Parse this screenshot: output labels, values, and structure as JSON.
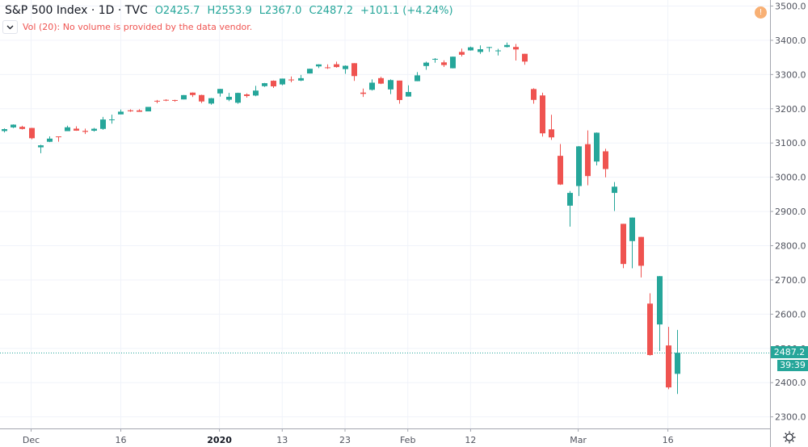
{
  "legend": {
    "title": "S&P 500 Index · 1D · TVC",
    "open": "O2425.7",
    "high": "H2553.9",
    "low": "L2367.0",
    "close": "C2487.2",
    "change": "+101.1 (+4.24%)"
  },
  "volume_indicator": {
    "collapse_icon": "chevron-down-icon",
    "text": "Vol (20): No volume is provided by the data vendor."
  },
  "alert_icon": {
    "name": "exclamation-circle-icon",
    "glyph": "!"
  },
  "price_axis": {
    "current_price_label": "2487.2",
    "countdown_label": "39:39",
    "settings_icon": "gear-icon"
  },
  "colors": {
    "up": "#26a69a",
    "down": "#ef5350",
    "grid": "#f0f3fa",
    "axis_line": "#a3a6af",
    "axis_text": "#50535e",
    "alert": "#f7a35c"
  },
  "chart_data": {
    "type": "candlestick",
    "title": "S&P 500 Index · 1D · TVC",
    "xlabel": "",
    "ylabel": "",
    "ylim": [
      2280,
      3520
    ],
    "grid": true,
    "y_ticks": [
      3500,
      3400,
      3300,
      3200,
      3100,
      3000,
      2900,
      2800,
      2700,
      2600,
      2500,
      2400,
      2300
    ],
    "y_tick_labels": [
      "3500.0",
      "3400.0",
      "3300.0",
      "3200.0",
      "3100.0",
      "3000.0",
      "2900.0",
      "2800.0",
      "2700.0",
      "2600.0",
      "2500.0",
      "2400.0",
      "2300.0"
    ],
    "x_ticks": [
      {
        "index": 3,
        "label": "Dec",
        "bold": false
      },
      {
        "index": 13,
        "label": "16",
        "bold": false
      },
      {
        "index": 24,
        "label": "2020",
        "bold": true
      },
      {
        "index": 31,
        "label": "13",
        "bold": false
      },
      {
        "index": 38,
        "label": "23",
        "bold": false
      },
      {
        "index": 45,
        "label": "Feb",
        "bold": false
      },
      {
        "index": 52,
        "label": "12",
        "bold": false
      },
      {
        "index": 64,
        "label": "Mar",
        "bold": false
      },
      {
        "index": 74,
        "label": "16",
        "bold": false
      }
    ],
    "current_price": 2487.2,
    "candles": [
      {
        "d": "2019-11-26",
        "o": 3134.9,
        "h": 3142.7,
        "l": 3131.0,
        "c": 3140.5
      },
      {
        "d": "2019-11-27",
        "o": 3145.5,
        "h": 3154.3,
        "l": 3143.4,
        "c": 3153.6
      },
      {
        "d": "2019-11-29",
        "o": 3147.2,
        "h": 3150.3,
        "l": 3139.3,
        "c": 3141.0
      },
      {
        "d": "2019-12-02",
        "o": 3143.9,
        "h": 3144.3,
        "l": 3110.8,
        "c": 3113.9
      },
      {
        "d": "2019-12-03",
        "o": 3087.4,
        "h": 3095.0,
        "l": 3070.3,
        "c": 3093.2
      },
      {
        "d": "2019-12-04",
        "o": 3103.5,
        "h": 3119.4,
        "l": 3102.5,
        "c": 3112.8
      },
      {
        "d": "2019-12-05",
        "o": 3119.2,
        "h": 3119.5,
        "l": 3103.8,
        "c": 3117.4
      },
      {
        "d": "2019-12-06",
        "o": 3134.6,
        "h": 3150.6,
        "l": 3134.6,
        "c": 3145.9
      },
      {
        "d": "2019-12-09",
        "o": 3141.9,
        "h": 3148.9,
        "l": 3135.5,
        "c": 3136.0
      },
      {
        "d": "2019-12-10",
        "o": 3135.4,
        "h": 3142.1,
        "l": 3126.1,
        "c": 3132.5
      },
      {
        "d": "2019-12-11",
        "o": 3135.8,
        "h": 3144.0,
        "l": 3133.2,
        "c": 3141.6
      },
      {
        "d": "2019-12-12",
        "o": 3141.2,
        "h": 3176.3,
        "l": 3138.5,
        "c": 3168.6
      },
      {
        "d": "2019-12-13",
        "o": 3166.7,
        "h": 3182.7,
        "l": 3156.5,
        "c": 3168.8
      },
      {
        "d": "2019-12-16",
        "o": 3183.6,
        "h": 3197.7,
        "l": 3183.6,
        "c": 3191.5
      },
      {
        "d": "2019-12-17",
        "o": 3195.4,
        "h": 3198.2,
        "l": 3191.0,
        "c": 3192.5
      },
      {
        "d": "2019-12-18",
        "o": 3195.2,
        "h": 3198.5,
        "l": 3191.1,
        "c": 3191.1
      },
      {
        "d": "2019-12-19",
        "o": 3192.3,
        "h": 3205.5,
        "l": 3192.3,
        "c": 3205.4
      },
      {
        "d": "2019-12-20",
        "o": 3223.3,
        "h": 3225.7,
        "l": 3216.0,
        "c": 3221.2
      },
      {
        "d": "2019-12-23",
        "o": 3226.1,
        "h": 3227.8,
        "l": 3222.3,
        "c": 3224.0
      },
      {
        "d": "2019-12-24",
        "o": 3225.5,
        "h": 3226.4,
        "l": 3220.5,
        "c": 3223.4
      },
      {
        "d": "2019-12-26",
        "o": 3227.2,
        "h": 3240.1,
        "l": 3227.2,
        "c": 3239.9
      },
      {
        "d": "2019-12-27",
        "o": 3247.2,
        "h": 3247.9,
        "l": 3234.4,
        "c": 3240.0
      },
      {
        "d": "2019-12-30",
        "o": 3240.1,
        "h": 3240.9,
        "l": 3216.6,
        "c": 3221.3
      },
      {
        "d": "2019-12-31",
        "o": 3215.2,
        "h": 3231.7,
        "l": 3212.0,
        "c": 3230.8
      },
      {
        "d": "2020-01-02",
        "o": 3244.7,
        "h": 3258.1,
        "l": 3235.5,
        "c": 3257.9
      },
      {
        "d": "2020-01-03",
        "o": 3226.4,
        "h": 3246.2,
        "l": 3222.3,
        "c": 3234.9
      },
      {
        "d": "2020-01-06",
        "o": 3217.6,
        "h": 3246.8,
        "l": 3214.6,
        "c": 3246.3
      },
      {
        "d": "2020-01-07",
        "o": 3241.9,
        "h": 3244.9,
        "l": 3232.4,
        "c": 3237.2
      },
      {
        "d": "2020-01-08",
        "o": 3238.6,
        "h": 3267.1,
        "l": 3236.7,
        "c": 3253.1
      },
      {
        "d": "2020-01-09",
        "o": 3266.0,
        "h": 3275.6,
        "l": 3263.7,
        "c": 3274.7
      },
      {
        "d": "2020-01-10",
        "o": 3281.8,
        "h": 3283.0,
        "l": 3260.9,
        "c": 3265.4
      },
      {
        "d": "2020-01-13",
        "o": 3271.1,
        "h": 3288.1,
        "l": 3268.4,
        "c": 3288.1
      },
      {
        "d": "2020-01-14",
        "o": 3285.4,
        "h": 3294.3,
        "l": 3277.2,
        "c": 3283.2
      },
      {
        "d": "2020-01-15",
        "o": 3282.3,
        "h": 3298.7,
        "l": 3280.7,
        "c": 3289.3
      },
      {
        "d": "2020-01-16",
        "o": 3303.0,
        "h": 3317.1,
        "l": 3302.8,
        "c": 3316.8
      },
      {
        "d": "2020-01-17",
        "o": 3323.7,
        "h": 3329.9,
        "l": 3318.9,
        "c": 3329.6
      },
      {
        "d": "2020-01-21",
        "o": 3321.0,
        "h": 3329.8,
        "l": 3316.6,
        "c": 3320.8
      },
      {
        "d": "2020-01-22",
        "o": 3330.0,
        "h": 3337.8,
        "l": 3320.0,
        "c": 3321.8
      },
      {
        "d": "2020-01-23",
        "o": 3315.8,
        "h": 3326.9,
        "l": 3301.9,
        "c": 3325.5
      },
      {
        "d": "2020-01-24",
        "o": 3333.1,
        "h": 3333.2,
        "l": 3281.5,
        "c": 3295.5
      },
      {
        "d": "2020-01-27",
        "o": 3247.2,
        "h": 3258.9,
        "l": 3234.5,
        "c": 3243.6
      },
      {
        "d": "2020-01-28",
        "o": 3255.4,
        "h": 3285.8,
        "l": 3253.2,
        "c": 3276.2
      },
      {
        "d": "2020-01-29",
        "o": 3289.5,
        "h": 3293.5,
        "l": 3271.9,
        "c": 3273.4
      },
      {
        "d": "2020-01-30",
        "o": 3256.5,
        "h": 3285.9,
        "l": 3242.8,
        "c": 3283.7
      },
      {
        "d": "2020-01-31",
        "o": 3282.3,
        "h": 3282.3,
        "l": 3214.7,
        "c": 3225.5
      },
      {
        "d": "2020-02-03",
        "o": 3235.7,
        "h": 3268.4,
        "l": 3235.7,
        "c": 3248.9
      },
      {
        "d": "2020-02-04",
        "o": 3280.6,
        "h": 3306.9,
        "l": 3280.6,
        "c": 3297.6
      },
      {
        "d": "2020-02-05",
        "o": 3324.9,
        "h": 3337.6,
        "l": 3313.8,
        "c": 3334.7
      },
      {
        "d": "2020-02-06",
        "o": 3344.9,
        "h": 3348.0,
        "l": 3334.4,
        "c": 3345.8
      },
      {
        "d": "2020-02-07",
        "o": 3335.5,
        "h": 3341.4,
        "l": 3322.1,
        "c": 3327.7
      },
      {
        "d": "2020-02-10",
        "o": 3318.3,
        "h": 3352.3,
        "l": 3317.8,
        "c": 3352.1
      },
      {
        "d": "2020-02-11",
        "o": 3365.9,
        "h": 3375.6,
        "l": 3352.7,
        "c": 3357.8
      },
      {
        "d": "2020-02-12",
        "o": 3370.5,
        "h": 3381.5,
        "l": 3369.7,
        "c": 3379.5
      },
      {
        "d": "2020-02-13",
        "o": 3365.9,
        "h": 3385.1,
        "l": 3360.5,
        "c": 3373.9
      },
      {
        "d": "2020-02-14",
        "o": 3378.1,
        "h": 3380.7,
        "l": 3366.2,
        "c": 3380.2
      },
      {
        "d": "2020-02-18",
        "o": 3369.0,
        "h": 3375.0,
        "l": 3355.6,
        "c": 3370.3
      },
      {
        "d": "2020-02-19",
        "o": 3380.4,
        "h": 3393.5,
        "l": 3378.8,
        "c": 3386.2
      },
      {
        "d": "2020-02-20",
        "o": 3380.5,
        "h": 3389.2,
        "l": 3341.0,
        "c": 3373.2
      },
      {
        "d": "2020-02-21",
        "o": 3360.5,
        "h": 3360.8,
        "l": 3328.5,
        "c": 3337.8
      },
      {
        "d": "2020-02-24",
        "o": 3257.6,
        "h": 3259.8,
        "l": 3214.7,
        "c": 3225.9
      },
      {
        "d": "2020-02-25",
        "o": 3238.9,
        "h": 3247.0,
        "l": 3118.8,
        "c": 3128.2
      },
      {
        "d": "2020-02-26",
        "o": 3139.9,
        "h": 3182.5,
        "l": 3109.0,
        "c": 3116.4
      },
      {
        "d": "2020-02-27",
        "o": 3062.5,
        "h": 3097.1,
        "l": 2977.4,
        "c": 2978.8
      },
      {
        "d": "2020-02-28",
        "o": 2916.9,
        "h": 2959.7,
        "l": 2855.8,
        "c": 2954.2
      },
      {
        "d": "2020-03-02",
        "o": 2974.3,
        "h": 3091.0,
        "l": 2945.2,
        "c": 3090.2
      },
      {
        "d": "2020-03-03",
        "o": 3096.5,
        "h": 3136.7,
        "l": 2976.6,
        "c": 3003.4
      },
      {
        "d": "2020-03-04",
        "o": 3045.8,
        "h": 3131.0,
        "l": 3034.4,
        "c": 3130.1
      },
      {
        "d": "2020-03-05",
        "o": 3075.7,
        "h": 3083.0,
        "l": 2999.8,
        "c": 3023.9
      },
      {
        "d": "2020-03-06",
        "o": 2954.2,
        "h": 2985.9,
        "l": 2901.5,
        "c": 2972.4
      },
      {
        "d": "2020-03-09",
        "o": 2863.9,
        "h": 2863.9,
        "l": 2734.4,
        "c": 2746.6
      },
      {
        "d": "2020-03-10",
        "o": 2813.5,
        "h": 2882.6,
        "l": 2734.0,
        "c": 2882.2
      },
      {
        "d": "2020-03-11",
        "o": 2825.6,
        "h": 2825.6,
        "l": 2707.2,
        "c": 2741.4
      },
      {
        "d": "2020-03-12",
        "o": 2630.9,
        "h": 2661.0,
        "l": 2478.9,
        "c": 2480.6
      },
      {
        "d": "2020-03-13",
        "o": 2570.0,
        "h": 2711.3,
        "l": 2492.4,
        "c": 2711.0
      },
      {
        "d": "2020-03-16",
        "o": 2508.6,
        "h": 2563.0,
        "l": 2380.9,
        "c": 2386.1
      },
      {
        "d": "2020-03-17",
        "o": 2425.7,
        "h": 2553.9,
        "l": 2367.0,
        "c": 2487.2
      }
    ]
  }
}
